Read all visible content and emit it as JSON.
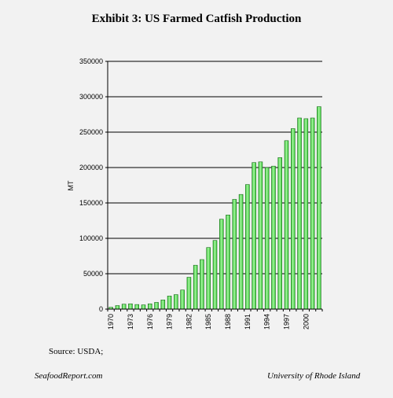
{
  "colors": {
    "background": "#f2f2f2",
    "bar_fill": "#33cc33",
    "bar_highlight": "#a6f2a0",
    "bar_stroke": "#1a6b1a",
    "grid": "#000000"
  },
  "chart_data": {
    "type": "bar",
    "title": "Exhibit 3: US Farmed Catfish Production",
    "ylabel": "MT",
    "xlabel": "",
    "ylim": [
      0,
      350000
    ],
    "y_ticks": [
      0,
      50000,
      100000,
      150000,
      200000,
      250000,
      300000,
      350000
    ],
    "grid": "horizontal",
    "x_tick_labels": [
      "1970",
      "1973",
      "1976",
      "1979",
      "1982",
      "1985",
      "1988",
      "1991",
      "1994",
      "1997",
      "2000"
    ],
    "categories": [
      "1970",
      "1971",
      "1972",
      "1973",
      "1974",
      "1975",
      "1976",
      "1977",
      "1978",
      "1979",
      "1980",
      "1981",
      "1982",
      "1983",
      "1984",
      "1985",
      "1986",
      "1987",
      "1988",
      "1989",
      "1990",
      "1991",
      "1992",
      "1993",
      "1994",
      "1995",
      "1996",
      "1997",
      "1998",
      "1999",
      "2000",
      "2001",
      "2002"
    ],
    "values": [
      2600,
      5000,
      7000,
      7500,
      6500,
      6000,
      7500,
      9500,
      13000,
      18500,
      20500,
      27000,
      45000,
      62000,
      70000,
      87000,
      97000,
      127000,
      133000,
      155000,
      162000,
      176000,
      207000,
      208000,
      200000,
      202000,
      214000,
      238000,
      255000,
      270000,
      269000,
      270000,
      286000
    ]
  },
  "source": "Source: USDA;",
  "footer": {
    "left": "SeafoodReport.com",
    "right": "University of Rhode Island"
  }
}
